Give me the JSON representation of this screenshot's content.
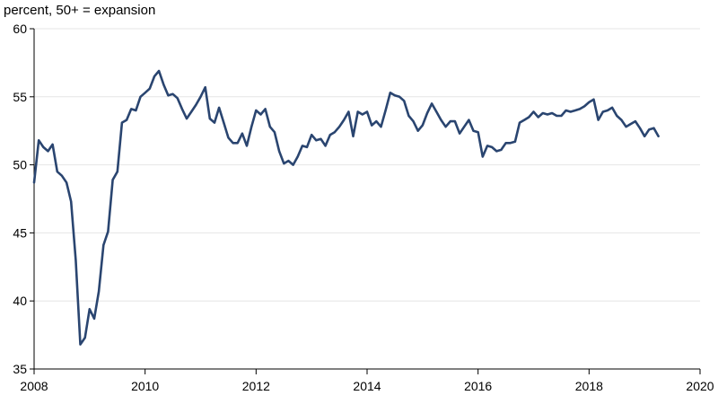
{
  "chart_data": {
    "type": "line",
    "ylabel": "percent, 50+ = expansion",
    "xlim": [
      2008,
      2020
    ],
    "ylim": [
      35,
      60
    ],
    "x_ticks": [
      "2008",
      "2010",
      "2012",
      "2014",
      "2016",
      "2018",
      "2020"
    ],
    "y_ticks": [
      "35",
      "40",
      "45",
      "50",
      "55",
      "60"
    ],
    "grid": "horizontal",
    "colors": {
      "line": "#2a4570",
      "grid": "#e6e6e6",
      "axis": "#000000"
    },
    "series": [
      {
        "x": [
          "2008-01",
          "2008-02",
          "2008-03",
          "2008-04",
          "2008-05",
          "2008-06",
          "2008-07",
          "2008-08",
          "2008-09",
          "2008-10",
          "2008-11",
          "2008-12",
          "2009-01",
          "2009-02",
          "2009-03",
          "2009-04",
          "2009-05",
          "2009-06",
          "2009-07",
          "2009-08",
          "2009-09",
          "2009-10",
          "2009-11",
          "2009-12",
          "2010-01",
          "2010-02",
          "2010-03",
          "2010-04",
          "2010-05",
          "2010-06",
          "2010-07",
          "2010-08",
          "2010-09",
          "2010-10",
          "2010-11",
          "2010-12",
          "2011-01",
          "2011-02",
          "2011-03",
          "2011-04",
          "2011-05",
          "2011-06",
          "2011-07",
          "2011-08",
          "2011-09",
          "2011-10",
          "2011-11",
          "2011-12",
          "2012-01",
          "2012-02",
          "2012-03",
          "2012-04",
          "2012-05",
          "2012-06",
          "2012-07",
          "2012-08",
          "2012-09",
          "2012-10",
          "2012-11",
          "2012-12",
          "2013-01",
          "2013-02",
          "2013-03",
          "2013-04",
          "2013-05",
          "2013-06",
          "2013-07",
          "2013-08",
          "2013-09",
          "2013-10",
          "2013-11",
          "2013-12",
          "2014-01",
          "2014-02",
          "2014-03",
          "2014-04",
          "2014-05",
          "2014-06",
          "2014-07",
          "2014-08",
          "2014-09",
          "2014-10",
          "2014-11",
          "2014-12",
          "2015-01",
          "2015-02",
          "2015-03",
          "2015-04",
          "2015-05",
          "2015-06",
          "2015-07",
          "2015-08",
          "2015-09",
          "2015-10",
          "2015-11",
          "2015-12",
          "2016-01",
          "2016-02",
          "2016-03",
          "2016-04",
          "2016-05",
          "2016-06",
          "2016-07",
          "2016-08",
          "2016-09",
          "2016-10",
          "2016-11",
          "2016-12",
          "2017-01",
          "2017-02",
          "2017-03",
          "2017-04",
          "2017-05",
          "2017-06",
          "2017-07",
          "2017-08",
          "2017-09",
          "2017-10",
          "2017-11",
          "2017-12",
          "2018-01",
          "2018-02",
          "2018-03",
          "2018-04",
          "2018-05",
          "2018-06",
          "2018-07",
          "2018-08",
          "2018-09",
          "2018-10",
          "2018-11",
          "2018-12",
          "2019-01",
          "2019-02",
          "2019-03",
          "2019-04"
        ],
        "values": [
          48.7,
          51.8,
          51.3,
          51.0,
          51.5,
          49.5,
          49.2,
          48.7,
          47.3,
          43.0,
          36.8,
          37.3,
          39.4,
          38.7,
          40.7,
          44.1,
          45.1,
          48.9,
          49.5,
          53.1,
          53.3,
          54.1,
          54.0,
          55.0,
          55.3,
          55.6,
          56.5,
          56.9,
          55.9,
          55.1,
          55.2,
          54.9,
          54.1,
          53.4,
          53.9,
          54.4,
          55.0,
          55.7,
          53.4,
          53.1,
          54.2,
          53.1,
          52.0,
          51.6,
          51.6,
          52.3,
          51.4,
          52.8,
          54.0,
          53.7,
          54.1,
          52.8,
          52.4,
          51.0,
          50.1,
          50.3,
          50.0,
          50.6,
          51.4,
          51.3,
          52.2,
          51.8,
          51.9,
          51.4,
          52.2,
          52.4,
          52.8,
          53.3,
          53.9,
          52.1,
          53.9,
          53.7,
          53.9,
          52.9,
          53.2,
          52.8,
          54.0,
          55.3,
          55.1,
          55.0,
          54.7,
          53.6,
          53.2,
          52.5,
          52.9,
          53.8,
          54.5,
          53.9,
          53.3,
          52.8,
          53.2,
          53.2,
          52.3,
          52.8,
          53.3,
          52.5,
          52.4,
          50.6,
          51.4,
          51.3,
          51.0,
          51.1,
          51.6,
          51.6,
          51.7,
          53.1,
          53.3,
          53.5,
          53.9,
          53.5,
          53.8,
          53.7,
          53.8,
          53.6,
          53.6,
          54.0,
          53.9,
          54.0,
          54.1,
          54.3,
          54.6,
          54.8,
          53.3,
          53.9,
          54.0,
          54.2,
          53.6,
          53.3,
          52.8,
          53.0,
          53.2,
          52.7,
          52.1,
          52.6,
          52.7,
          52.1
        ]
      }
    ]
  }
}
